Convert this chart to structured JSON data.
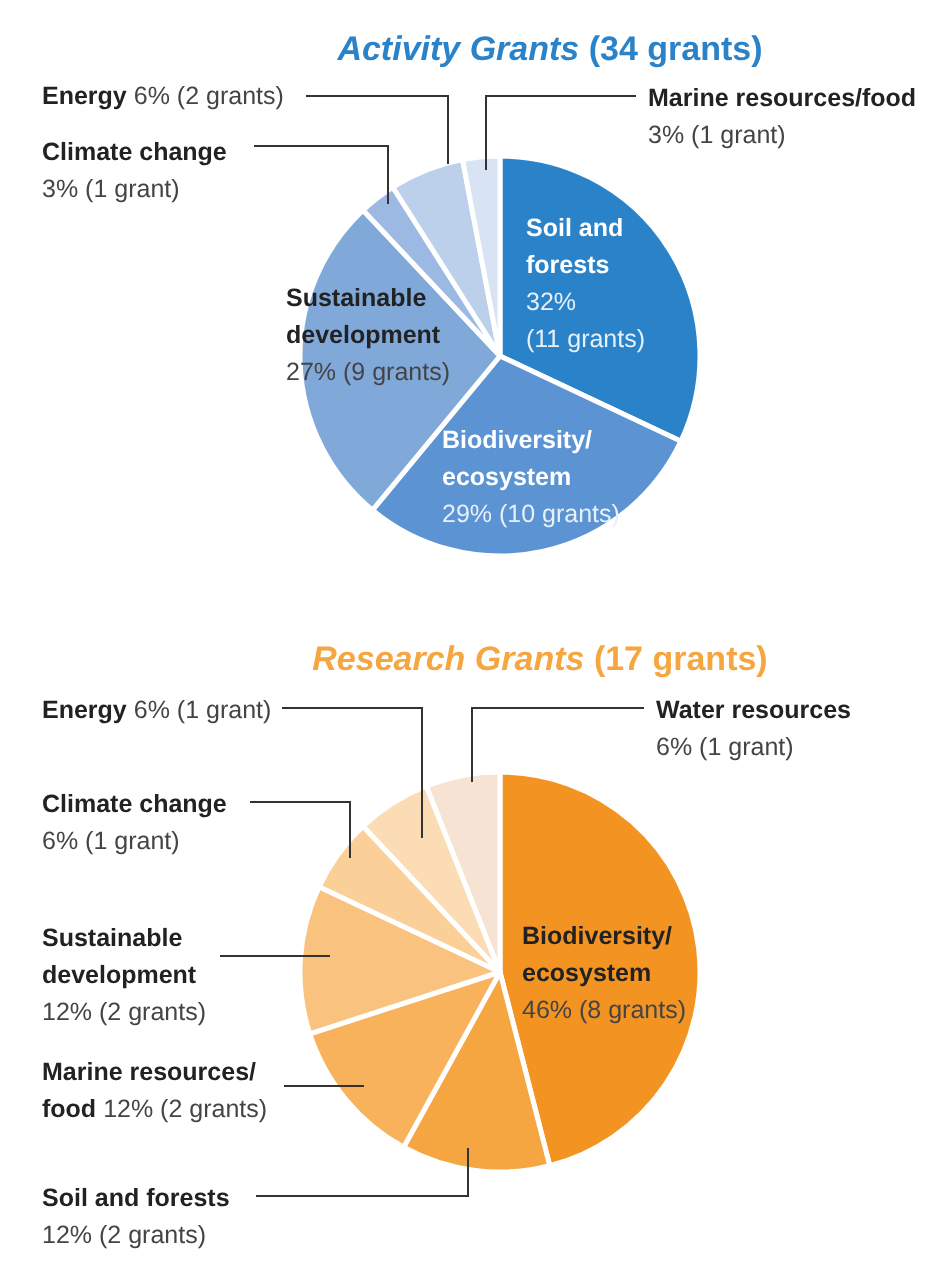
{
  "chart_data": [
    {
      "type": "pie",
      "title": "Activity Grants (34 grants)",
      "categories": [
        "Soil and forests",
        "Biodiversity/ecosystem",
        "Sustainable development",
        "Climate change",
        "Energy",
        "Marine resources/food"
      ],
      "values": [
        32,
        29,
        27,
        3,
        6,
        3
      ],
      "colors": [
        "#2a82c9",
        "#5b93d3",
        "#80a9da",
        "#9bb9e2",
        "#bccfeb",
        "#d8e3f3"
      ],
      "value_labels": [
        "32% (11 grants)",
        "29% (10 grants)",
        "27% (9 grants)",
        "3% (1 grant)",
        "6% (2 grants)",
        "3% (1 grant)"
      ]
    },
    {
      "type": "pie",
      "title": "Research Grants (17 grants)",
      "categories": [
        "Biodiversity/ecosystem",
        "Soil and forests",
        "Marine resources/food",
        "Sustainable development",
        "Climate change",
        "Energy",
        "Water resources"
      ],
      "values": [
        46,
        12,
        12,
        12,
        6,
        6,
        6
      ],
      "colors": [
        "#f39322",
        "#f6a641",
        "#f8b25c",
        "#f9c27f",
        "#fbcf98",
        "#fcdcb4",
        "#f6e3d3"
      ],
      "value_labels": [
        "46% (8 grants)",
        "12% (2 grants)",
        "12% (2 grants)",
        "12% (2 grants)",
        "6% (1 grant)",
        "6% (1 grant)",
        "6% (1 grant)"
      ]
    }
  ]
}
